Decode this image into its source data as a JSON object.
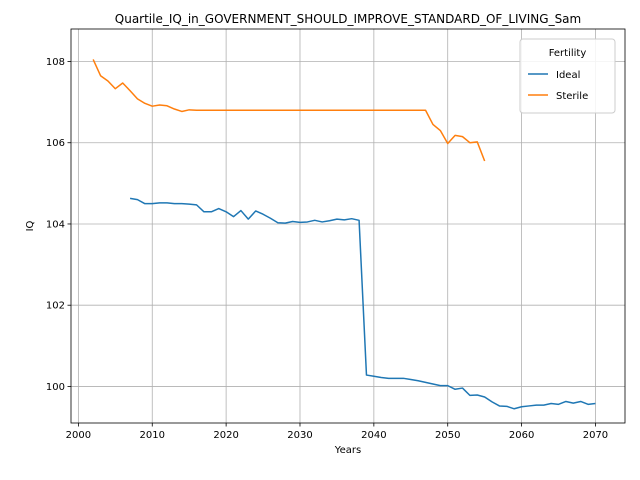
{
  "chart_data": {
    "type": "line",
    "title": "Quartile_IQ_in_GOVERNMENT_SHOULD_IMPROVE_STANDARD_OF_LIVING_Sam",
    "xlabel": "Years",
    "ylabel": "IQ",
    "xlim": [
      1999,
      2074
    ],
    "ylim": [
      99.1,
      108.8
    ],
    "xticks": [
      2000,
      2010,
      2020,
      2030,
      2040,
      2050,
      2060,
      2070
    ],
    "yticks": [
      100,
      102,
      104,
      106,
      108
    ],
    "grid": true,
    "legend": {
      "title": "Fertility",
      "position": "top-right"
    },
    "series": [
      {
        "name": "Ideal",
        "color": "#1f77b4",
        "x": [
          2007,
          2008,
          2009,
          2010,
          2011,
          2012,
          2013,
          2014,
          2015,
          2016,
          2017,
          2018,
          2019,
          2020,
          2021,
          2022,
          2023,
          2024,
          2025,
          2026,
          2027,
          2028,
          2029,
          2030,
          2031,
          2032,
          2033,
          2034,
          2035,
          2036,
          2037,
          2038,
          2039,
          2040,
          2041,
          2042,
          2043,
          2044,
          2045,
          2046,
          2047,
          2048,
          2049,
          2050,
          2051,
          2052,
          2053,
          2054,
          2055,
          2056,
          2057,
          2058,
          2059,
          2060,
          2061,
          2062,
          2063,
          2064,
          2065,
          2066,
          2067,
          2068,
          2069,
          2070
        ],
        "y": [
          104.63,
          104.6,
          104.5,
          104.5,
          104.52,
          104.52,
          104.5,
          104.5,
          104.49,
          104.47,
          104.3,
          104.3,
          104.38,
          104.3,
          104.18,
          104.33,
          104.12,
          104.32,
          104.24,
          104.14,
          104.03,
          104.02,
          104.06,
          104.04,
          104.05,
          104.09,
          104.05,
          104.08,
          104.12,
          104.1,
          104.13,
          104.09,
          100.28,
          100.25,
          100.22,
          100.2,
          100.2,
          100.2,
          100.17,
          100.14,
          100.1,
          100.06,
          100.02,
          100.02,
          99.93,
          99.96,
          99.78,
          99.79,
          99.74,
          99.62,
          99.52,
          99.51,
          99.45,
          99.5,
          99.52,
          99.54,
          99.54,
          99.58,
          99.56,
          99.63,
          99.59,
          99.63,
          99.56,
          99.58
        ]
      },
      {
        "name": "Sterile",
        "color": "#ff7f0e",
        "x": [
          2002,
          2003,
          2004,
          2005,
          2006,
          2007,
          2008,
          2009,
          2010,
          2011,
          2012,
          2013,
          2014,
          2015,
          2016,
          2017,
          2018,
          2019,
          2020,
          2021,
          2022,
          2023,
          2024,
          2025,
          2026,
          2027,
          2028,
          2029,
          2030,
          2031,
          2032,
          2033,
          2034,
          2035,
          2036,
          2037,
          2038,
          2039,
          2040,
          2041,
          2042,
          2043,
          2044,
          2045,
          2046,
          2047,
          2048,
          2049,
          2050,
          2051,
          2052,
          2053,
          2054,
          2055
        ],
        "y": [
          108.05,
          107.65,
          107.52,
          107.33,
          107.47,
          107.28,
          107.08,
          106.97,
          106.9,
          106.93,
          106.91,
          106.83,
          106.77,
          106.81,
          106.8,
          106.8,
          106.8,
          106.8,
          106.8,
          106.8,
          106.8,
          106.8,
          106.8,
          106.8,
          106.8,
          106.8,
          106.8,
          106.8,
          106.8,
          106.8,
          106.8,
          106.8,
          106.8,
          106.8,
          106.8,
          106.8,
          106.8,
          106.8,
          106.8,
          106.8,
          106.8,
          106.8,
          106.8,
          106.8,
          106.8,
          106.8,
          106.45,
          106.3,
          105.98,
          106.18,
          106.15,
          106.0,
          106.02,
          105.55
        ]
      }
    ]
  }
}
